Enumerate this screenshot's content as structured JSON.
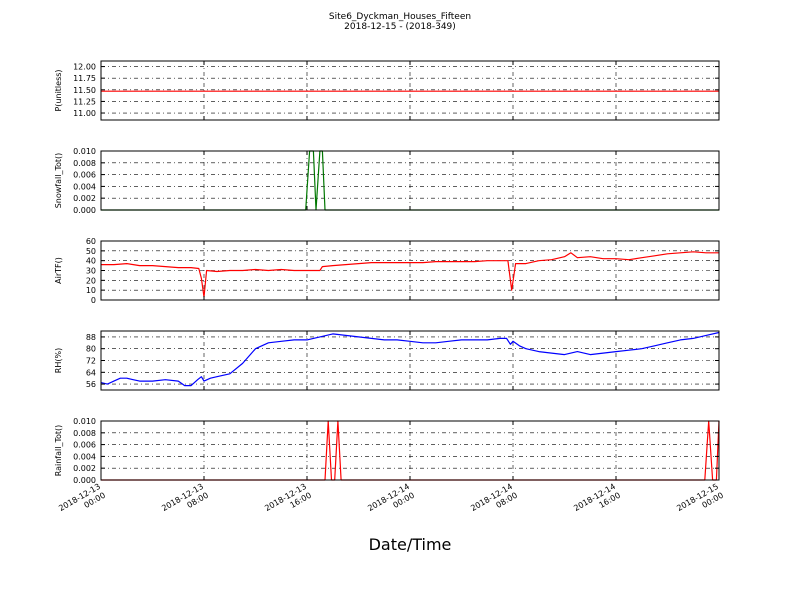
{
  "figure": {
    "title_line1": "Site6_Dyckman_Houses_Fifteen",
    "title_line2": "2018-12-15 - (2018-349)",
    "xlabel": "Date/Time"
  },
  "chart_data": [
    {
      "type": "line",
      "ylabel": "P(unitless)",
      "color": "#ff0000",
      "ylim": [
        10.85,
        12.12
      ],
      "yticks": [
        "12.00",
        "11.75",
        "11.50",
        "11.25",
        "11.00"
      ],
      "ytick_values": [
        12.0,
        11.75,
        11.5,
        11.25,
        11.0
      ],
      "x_hours": [
        0,
        48
      ],
      "values": [
        11.47,
        11.47
      ],
      "grid": true
    },
    {
      "type": "line",
      "ylabel": "Snowfall_Tot()",
      "color": "#007700",
      "ylim": [
        0,
        0.01
      ],
      "yticks": [
        "0.010",
        "0.008",
        "0.006",
        "0.004",
        "0.002",
        "0.000"
      ],
      "ytick_values": [
        0.01,
        0.008,
        0.006,
        0.004,
        0.002,
        0.0
      ],
      "x_hours": [
        0,
        15.9,
        16.2,
        16.5,
        16.7,
        17.0,
        17.2,
        17.4,
        48
      ],
      "values": [
        0,
        0,
        0.01,
        0.01,
        0,
        0.01,
        0.01,
        0,
        0
      ],
      "grid": true
    },
    {
      "type": "line",
      "ylabel": "AirTF()",
      "color": "#ff0000",
      "ylim": [
        0,
        60
      ],
      "yticks": [
        "60",
        "50",
        "40",
        "30",
        "20",
        "10",
        "0"
      ],
      "ytick_values": [
        60,
        50,
        40,
        30,
        20,
        10,
        0
      ],
      "x_hours": [
        0,
        1,
        2,
        3,
        4,
        5,
        6,
        7,
        7.6,
        7.8,
        8.0,
        8.2,
        9,
        10,
        11,
        12,
        13,
        14,
        15,
        16,
        17,
        17.2,
        18,
        19,
        20,
        21,
        22,
        23,
        24,
        25,
        26,
        27,
        28,
        29,
        30,
        31,
        31.6,
        31.9,
        32.2,
        33,
        34,
        35,
        36,
        36.5,
        37,
        38,
        39,
        40,
        41,
        42,
        43,
        44,
        45,
        46,
        47,
        48
      ],
      "values": [
        36,
        36,
        37,
        35,
        35,
        34,
        33,
        33,
        32,
        22,
        3,
        30,
        29,
        30,
        30,
        31,
        30,
        31,
        30,
        30,
        30,
        34,
        35,
        36,
        37,
        38,
        38,
        38,
        38,
        38,
        39,
        39,
        39,
        39,
        40,
        40,
        40,
        10,
        37,
        37,
        40,
        41,
        44,
        48,
        43,
        44,
        42,
        42,
        41,
        43,
        45,
        47,
        48,
        49,
        48,
        48
      ],
      "grid": true
    },
    {
      "type": "line",
      "ylabel": "RH(%)",
      "color": "#0000ff",
      "ylim": [
        52,
        92
      ],
      "yticks": [
        "88",
        "80",
        "72",
        "64",
        "56"
      ],
      "ytick_values": [
        88,
        80,
        72,
        64,
        56
      ],
      "x_hours": [
        0,
        0.5,
        1,
        1.5,
        2,
        2.5,
        3,
        4,
        5,
        6,
        6.5,
        7,
        7.5,
        7.8,
        8,
        8.5,
        9,
        10,
        11,
        12,
        13,
        14,
        15,
        16,
        16.5,
        17,
        18,
        19,
        20,
        21,
        22,
        23,
        24,
        25,
        26,
        27,
        28,
        29,
        30,
        31,
        31.5,
        31.8,
        32,
        32.5,
        33,
        34,
        35,
        36,
        37,
        38,
        39,
        40,
        41,
        42,
        43,
        44,
        45,
        46,
        47,
        48
      ],
      "values": [
        57,
        56,
        58,
        60,
        60,
        59,
        58,
        58,
        59,
        58,
        55,
        55,
        59,
        61,
        58,
        60,
        61,
        63,
        70,
        80,
        84,
        85,
        86,
        86,
        87,
        88,
        90,
        89,
        88,
        87,
        86,
        86,
        85,
        84,
        84,
        85,
        86,
        86,
        86,
        87,
        87,
        83,
        85,
        82,
        80,
        78,
        77,
        76,
        78,
        76,
        77,
        78,
        79,
        80,
        82,
        84,
        86,
        87,
        89,
        91
      ],
      "grid": true
    },
    {
      "type": "line",
      "ylabel": "Rainfall_Tot()",
      "color": "#ff0000",
      "ylim": [
        0,
        0.01
      ],
      "yticks": [
        "0.010",
        "0.008",
        "0.006",
        "0.004",
        "0.002",
        "0.000"
      ],
      "ytick_values": [
        0.01,
        0.008,
        0.006,
        0.004,
        0.002,
        0.0
      ],
      "x_hours": [
        0,
        17.4,
        17.65,
        17.9,
        18.15,
        18.4,
        18.65,
        18.9,
        46.9,
        47.2,
        47.5,
        47.8,
        48
      ],
      "values": [
        0,
        0,
        0.01,
        0,
        0,
        0.01,
        0,
        0,
        0,
        0.01,
        0,
        0,
        0.01
      ],
      "grid": true
    }
  ],
  "x_axis": {
    "ticks_hours": [
      0,
      8,
      16,
      24,
      32,
      40,
      48
    ],
    "tick_label_dates": [
      "2018-12-13",
      "2018-12-13",
      "2018-12-13",
      "2018-12-14",
      "2018-12-14",
      "2018-12-14",
      "2018-12-15"
    ],
    "tick_label_times": [
      "00:00",
      "08:00",
      "16:00",
      "00:00",
      "08:00",
      "16:00",
      "00:00"
    ]
  }
}
